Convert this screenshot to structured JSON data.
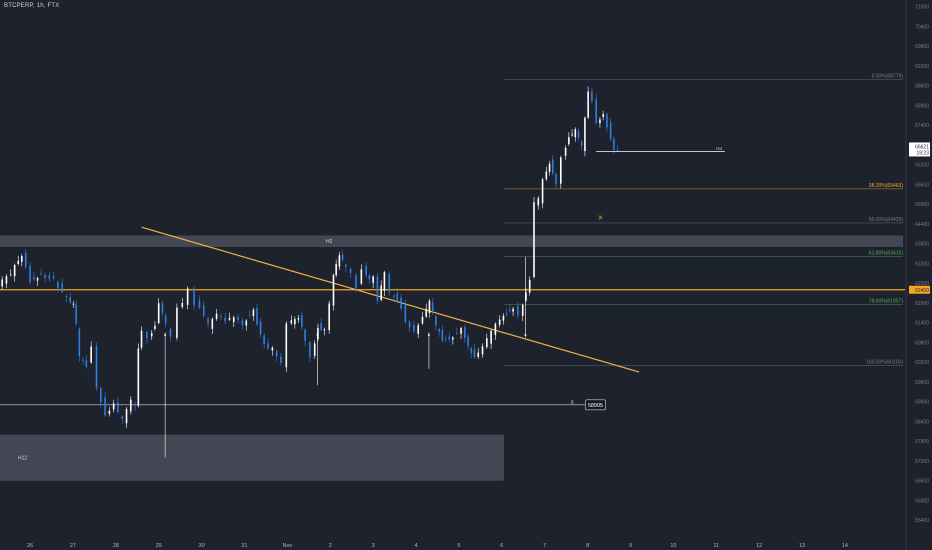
{
  "header": {
    "title": "BTCPERP, 1h, FTX"
  },
  "chart_data": {
    "type": "candlestick",
    "title": "BTCPERP, 1h, FTX",
    "ylim": [
      54800,
      71200
    ],
    "y_ticks": [
      71000,
      70400,
      69800,
      69200,
      68600,
      68000,
      67400,
      66800,
      66200,
      65600,
      65000,
      64400,
      63800,
      63200,
      62600,
      62000,
      61400,
      60800,
      60200,
      59600,
      59000,
      58400,
      57800,
      57200,
      56600,
      56000,
      55400
    ],
    "y_tick_labels": [
      "71000",
      "70400",
      "69800",
      "69200",
      "68600",
      "68000",
      "67400",
      "66800",
      "66200",
      "65600",
      "65000",
      "64400",
      "63800",
      "63200",
      "62600",
      "62000",
      "61400",
      "60800",
      "60200",
      "59600",
      "59000",
      "58400",
      "57800",
      "57200",
      "56600",
      "56000",
      "55400"
    ],
    "x_ticks": [
      0,
      1,
      2,
      3,
      4,
      5,
      6,
      7,
      8,
      9,
      10,
      11,
      12,
      13,
      14,
      15,
      16,
      17,
      18,
      19
    ],
    "x_labels": [
      "26",
      "27",
      "28",
      "29",
      "30",
      "31",
      "Nov",
      "2",
      "3",
      "4",
      "5",
      "6",
      "7",
      "8",
      "9",
      "10",
      "11",
      "12",
      "13",
      "14"
    ],
    "xlim": [
      -0.7,
      20.4
    ],
    "closes": [
      [
        -0.7,
        62500
      ],
      [
        -0.4,
        62900
      ],
      [
        -0.15,
        63500
      ],
      [
        0.05,
        62700
      ],
      [
        0.3,
        62900
      ],
      [
        0.6,
        62700
      ],
      [
        0.9,
        62100
      ],
      [
        1.05,
        61900
      ],
      [
        1.1,
        61300
      ],
      [
        1.2,
        60300
      ],
      [
        1.35,
        60100
      ],
      [
        1.5,
        60700
      ],
      [
        1.6,
        59500
      ],
      [
        1.8,
        58600
      ],
      [
        2.0,
        58900
      ],
      [
        2.2,
        58400
      ],
      [
        2.4,
        59000
      ],
      [
        2.5,
        58800
      ],
      [
        2.55,
        60600
      ],
      [
        2.65,
        61200
      ],
      [
        2.8,
        61000
      ],
      [
        2.95,
        61300
      ],
      [
        3.05,
        62000
      ],
      [
        3.2,
        61300
      ],
      [
        3.35,
        60900
      ],
      [
        3.5,
        61800
      ],
      [
        3.6,
        62000
      ],
      [
        3.75,
        62500
      ],
      [
        3.9,
        62000
      ],
      [
        4.0,
        61900
      ],
      [
        4.2,
        61300
      ],
      [
        4.4,
        61600
      ],
      [
        4.6,
        61400
      ],
      [
        4.8,
        61600
      ],
      [
        5.0,
        61400
      ],
      [
        5.25,
        61800
      ],
      [
        5.5,
        60700
      ],
      [
        5.7,
        60600
      ],
      [
        5.9,
        60100
      ],
      [
        6.05,
        61300
      ],
      [
        6.3,
        61600
      ],
      [
        6.45,
        60900
      ],
      [
        6.6,
        60400
      ],
      [
        6.75,
        61300
      ],
      [
        6.9,
        61200
      ],
      [
        7.05,
        62000
      ],
      [
        7.1,
        62800
      ],
      [
        7.25,
        63400
      ],
      [
        7.4,
        63100
      ],
      [
        7.55,
        62900
      ],
      [
        7.65,
        62500
      ],
      [
        7.8,
        63100
      ],
      [
        7.95,
        62700
      ],
      [
        8.05,
        62800
      ],
      [
        8.15,
        62000
      ],
      [
        8.3,
        62900
      ],
      [
        8.45,
        62300
      ],
      [
        8.6,
        62100
      ],
      [
        8.7,
        61900
      ],
      [
        8.8,
        61500
      ],
      [
        9.0,
        61100
      ],
      [
        9.2,
        61500
      ],
      [
        9.35,
        62000
      ],
      [
        9.5,
        61300
      ],
      [
        9.65,
        60900
      ],
      [
        9.9,
        61000
      ],
      [
        10.1,
        61300
      ],
      [
        10.25,
        60700
      ],
      [
        10.4,
        60300
      ],
      [
        10.6,
        60600
      ],
      [
        10.8,
        61100
      ],
      [
        11.0,
        61500
      ],
      [
        11.15,
        61700
      ],
      [
        11.3,
        61900
      ],
      [
        11.45,
        61700
      ],
      [
        11.6,
        62300
      ],
      [
        11.7,
        62700
      ],
      [
        11.8,
        65000
      ],
      [
        11.9,
        65100
      ],
      [
        12.0,
        65700
      ],
      [
        12.15,
        66300
      ],
      [
        12.3,
        65700
      ],
      [
        12.45,
        66500
      ],
      [
        12.6,
        67000
      ],
      [
        12.75,
        67200
      ],
      [
        12.9,
        66700
      ],
      [
        13.05,
        68400
      ],
      [
        13.15,
        68100
      ],
      [
        13.25,
        67500
      ],
      [
        13.4,
        67800
      ],
      [
        13.5,
        67400
      ],
      [
        13.65,
        66600
      ],
      [
        13.75,
        66600
      ]
    ],
    "lines": {
      "h4": {
        "label": "H4",
        "value": 66600
      },
      "level": {
        "label": "58905",
        "value": 58905,
        "marker": "X",
        "box_label": "58905"
      },
      "orange": {
        "value": 62400,
        "axis_tag": "62400"
      },
      "price_tag": {
        "price": "66621",
        "time": "19:23"
      }
    },
    "zones": [
      {
        "label": "H2",
        "top": 64050,
        "bottom": 63700
      },
      {
        "label": "H12",
        "top": 58000,
        "bottom": 56600
      }
    ],
    "trendline": {
      "from": [
        2.6,
        64300
      ],
      "to": [
        14.2,
        59900
      ],
      "color": "#f0b24a"
    },
    "fib": [
      {
        "label": "0.00%(68778)",
        "value": 68778,
        "color": "#787b86"
      },
      {
        "label": "38.20%(65463)",
        "value": 65463,
        "color": "#f5a623"
      },
      {
        "label": "50.00%(64429)",
        "value": 64429,
        "color": "#787b86"
      },
      {
        "label": "61.80%(63415)",
        "value": 63415,
        "color": "#4caf50"
      },
      {
        "label": "78.60%(61957)",
        "value": 61957,
        "color": "#4caf50"
      },
      {
        "label": "100.00%(60100)",
        "value": 60100,
        "color": "#787b86"
      }
    ],
    "marker": {
      "symbol": "×",
      "x": 13.3,
      "y": 64600,
      "color": "#f59a23"
    },
    "colors": {
      "up": "#ffffff",
      "down": "#2f7fe0",
      "background": "#1e222d",
      "text": "#787b86",
      "orange": "#f5a623"
    }
  }
}
